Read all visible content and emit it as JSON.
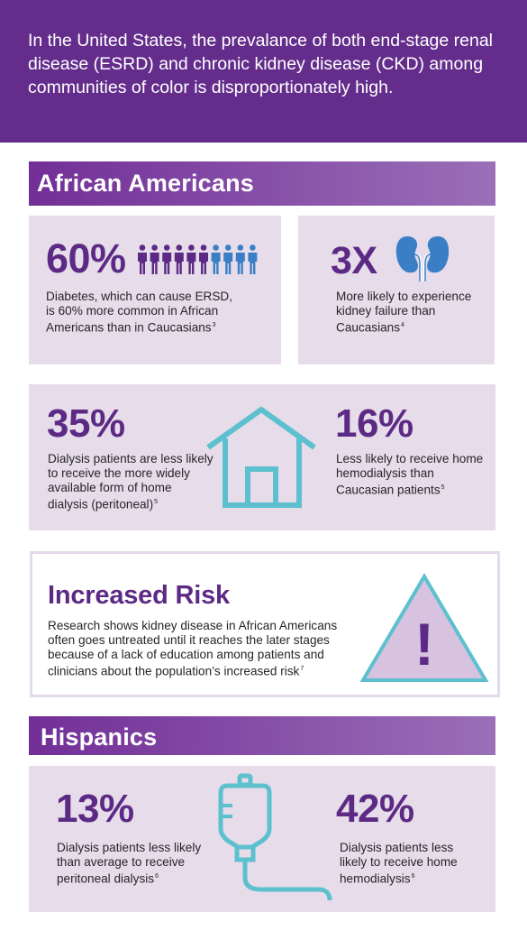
{
  "intro": {
    "text": "In the United States, the prevalance of both end-stage renal disease (ESRD) and chronic kidney disease (CKD) among communities of color is disproportionately high."
  },
  "african_americans": {
    "heading": "African Americans",
    "diabetes": {
      "value": "60%",
      "text": "Diabetes, which can cause ERSD, is 60% more common in African Americans than in Caucasians",
      "ref": "3",
      "people_total": 10,
      "people_highlighted": 6
    },
    "kidney_failure": {
      "value": "3X",
      "text": "More likely to experience kidney failure than Caucasians",
      "ref": "4"
    },
    "peritoneal": {
      "value": "35%",
      "text": "Dialysis patients are less likely to receive the more widely available form of home dialysis (peritoneal)",
      "ref": "5"
    },
    "home_hemo": {
      "value": "16%",
      "text": "Less likely to receive home hemodialysis than Caucasian patients",
      "ref": "5"
    }
  },
  "risk": {
    "title": "Increased Risk",
    "text": "Research shows kidney disease in African Americans often goes untreated until it reaches the later stages because of a lack of education among patients and clinicians about the population’s increased risk",
    "ref": "7",
    "symbol": "!"
  },
  "hispanics": {
    "heading": "Hispanics",
    "peritoneal": {
      "value": "13%",
      "text": "Dialysis patients less likely than average to receive peritoneal dialysis",
      "ref": "6"
    },
    "home_hemo": {
      "value": "42%",
      "text": "Dialysis patients less likely to receive home hemodialysis",
      "ref": "6"
    }
  },
  "colors": {
    "purple_dark": "#642d8c",
    "purple_text": "#5c2a84",
    "card_bg": "#e6dcea",
    "accent_blue": "#3a7fc6",
    "teal_line": "#5cc0cf"
  },
  "icons": [
    "people-icon",
    "kidneys-icon",
    "house-icon",
    "warning-triangle-icon",
    "iv-bag-icon"
  ]
}
